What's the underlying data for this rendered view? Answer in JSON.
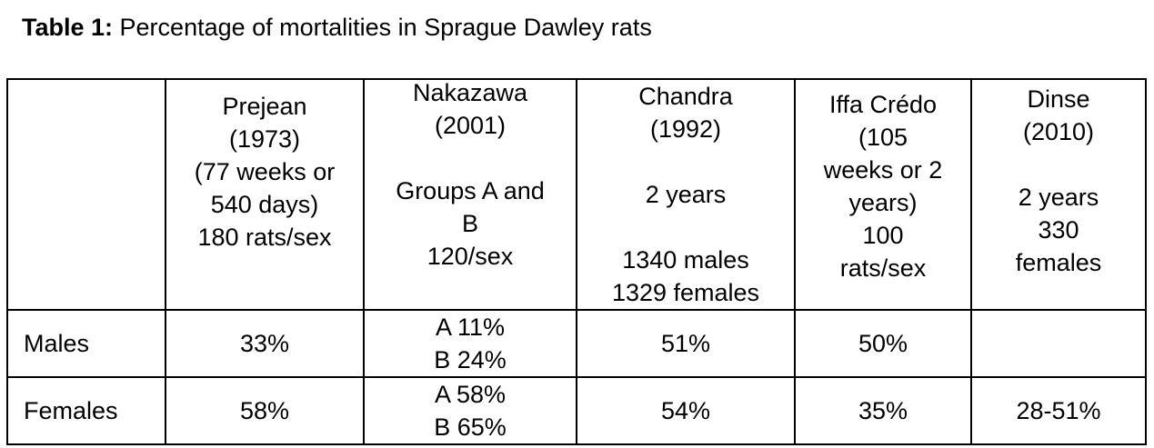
{
  "caption": {
    "bold": "Table 1:",
    "text": " Percentage of mortalities in Sprague Dawley rats"
  },
  "columns": [
    {
      "key": "prejean",
      "lines": [
        "Prejean",
        "(1973)",
        "(77 weeks or",
        "540 days)",
        "180 rats/sex"
      ]
    },
    {
      "key": "nakazawa",
      "lines_top": [
        "Nakazawa",
        "(2001)"
      ],
      "lines_bottom": [
        "Groups A and",
        "B",
        "120/sex"
      ]
    },
    {
      "key": "chandra",
      "lines_top": [
        "Chandra",
        "(1992)"
      ],
      "lines_mid": [
        "2 years"
      ],
      "lines_bottom": [
        "1340 males",
        "1329 females"
      ]
    },
    {
      "key": "iffa",
      "lines": [
        "Iffa Crédo",
        "(105",
        "weeks or 2",
        "years)",
        "100",
        "rats/sex"
      ]
    },
    {
      "key": "dinse",
      "lines_top": [
        "Dinse",
        "(2010)"
      ],
      "lines_bottom": [
        "2 years",
        "330",
        "females"
      ]
    }
  ],
  "rows": [
    {
      "label": "Males",
      "prejean": "33%",
      "nakazawa": [
        "A 11%",
        "B 24%"
      ],
      "chandra": "51%",
      "iffa": "50%",
      "dinse": ""
    },
    {
      "label": "Females",
      "prejean": "58%",
      "nakazawa": [
        "A 58%",
        "B 65%"
      ],
      "chandra": "54%",
      "iffa": "35%",
      "dinse": "28-51%"
    }
  ]
}
